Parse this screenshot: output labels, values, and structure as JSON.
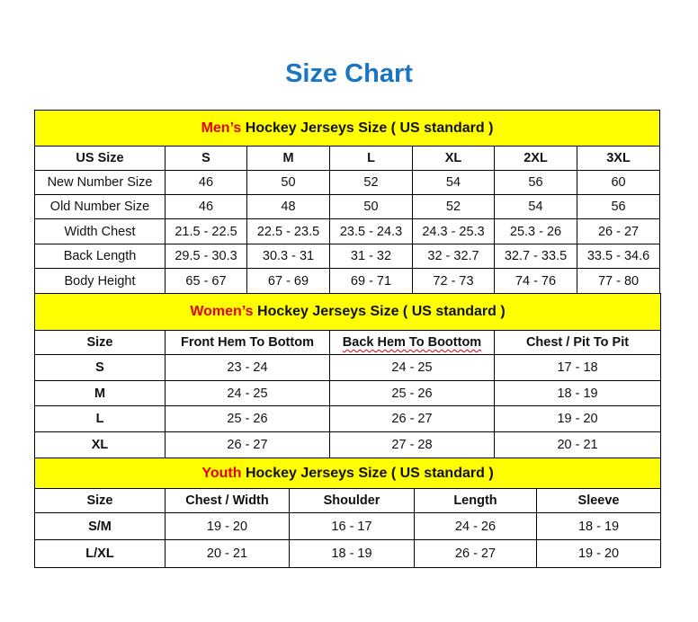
{
  "title": "Size Chart",
  "colors": {
    "title": "#1a75c2",
    "banner_bg": "#ffff00",
    "highlight": "#e60000"
  },
  "mens": {
    "banner_highlight": "Men’s",
    "banner_rest": " Hockey Jerseys Size ( US standard )",
    "headers": [
      "US Size",
      "S",
      "M",
      "L",
      "XL",
      "2XL",
      "3XL"
    ],
    "rows": [
      [
        "New Number Size",
        "46",
        "50",
        "52",
        "54",
        "56",
        "60"
      ],
      [
        "Old Number Size",
        "46",
        "48",
        "50",
        "52",
        "54",
        "56"
      ],
      [
        "Width Chest",
        "21.5 - 22.5",
        "22.5 - 23.5",
        "23.5 - 24.3",
        "24.3 - 25.3",
        "25.3 - 26",
        "26 - 27"
      ],
      [
        "Back Length",
        "29.5 - 30.3",
        "30.3 - 31",
        "31 - 32",
        "32 - 32.7",
        "32.7 - 33.5",
        "33.5 - 34.6"
      ],
      [
        "Body Height",
        "65 - 67",
        "67 - 69",
        "69 - 71",
        "72 - 73",
        "74 - 76",
        "77 - 80"
      ]
    ]
  },
  "womens": {
    "banner_highlight": "Women’s",
    "banner_rest": " Hockey Jerseys Size ( US standard )",
    "headers": [
      "Size",
      "Front Hem To Bottom",
      "Back Hem To Boottom",
      "Chest / Pit To Pit"
    ],
    "rows": [
      [
        "S",
        "23 - 24",
        "24 - 25",
        "17 - 18"
      ],
      [
        "M",
        "24 - 25",
        "25 - 26",
        "18 - 19"
      ],
      [
        "L",
        "25 - 26",
        "26 - 27",
        "19 - 20"
      ],
      [
        "XL",
        "26 - 27",
        "27 - 28",
        "20 - 21"
      ]
    ]
  },
  "youth": {
    "banner_highlight": "Youth",
    "banner_rest": " Hockey Jerseys Size ( US standard )",
    "headers": [
      "Size",
      "Chest / Width",
      "Shoulder",
      "Length",
      "Sleeve"
    ],
    "rows": [
      [
        "S/M",
        "19 - 20",
        "16 - 17",
        "24 - 26",
        "18 - 19"
      ],
      [
        "L/XL",
        "20 - 21",
        "18 - 19",
        "26 - 27",
        "19 - 20"
      ]
    ]
  }
}
